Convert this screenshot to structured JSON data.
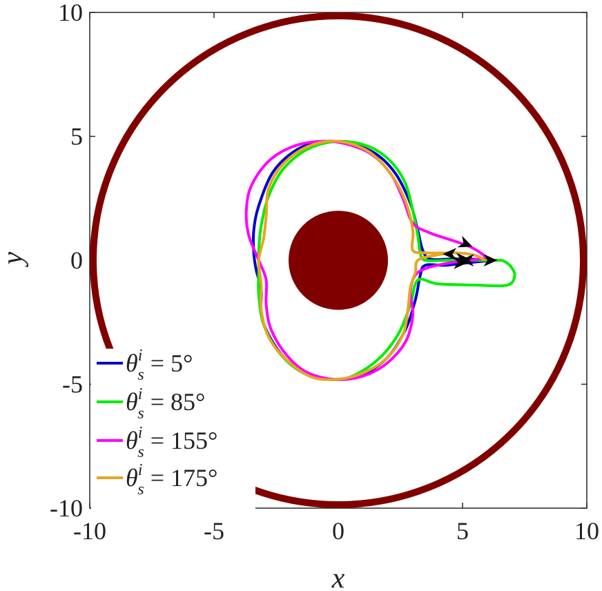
{
  "chart_data": {
    "type": "line",
    "title": "",
    "xlabel": "x",
    "ylabel": "y",
    "xlim": [
      -10,
      10
    ],
    "ylim": [
      -10,
      10
    ],
    "xticks": [
      -10,
      -5,
      0,
      5,
      10
    ],
    "yticks": [
      -10,
      -5,
      0,
      5,
      10
    ],
    "xtick_labels": [
      "-10",
      "-5",
      "0",
      "5",
      "10"
    ],
    "ytick_labels": [
      "-10",
      "-5",
      "0",
      "5",
      "10"
    ],
    "grid": false,
    "legend_position": "bottom-left",
    "outer_circle": {
      "center": [
        0,
        0
      ],
      "radius": 10,
      "color": "#800000"
    },
    "inner_disk": {
      "center": [
        0,
        0
      ],
      "radius": 2,
      "color": "#800000"
    },
    "series": [
      {
        "name_symbol": "θ",
        "name_superscript": "i",
        "name_subscript": "s",
        "name_value": " = 5°",
        "color": "#0000cc",
        "points": [
          [
            6.2,
            0.0
          ],
          [
            5.2,
            -0.1
          ],
          [
            4.3,
            -0.2
          ],
          [
            3.5,
            -0.2
          ],
          [
            3.3,
            -0.6
          ],
          [
            3.1,
            -1.6
          ],
          [
            2.7,
            -2.8
          ],
          [
            2.0,
            -3.9
          ],
          [
            1.0,
            -4.6
          ],
          [
            0.0,
            -4.8
          ],
          [
            -1.0,
            -4.7
          ],
          [
            -2.0,
            -4.1
          ],
          [
            -2.7,
            -3.2
          ],
          [
            -3.1,
            -2.2
          ],
          [
            -3.1,
            -1.2
          ],
          [
            -3.3,
            -0.4
          ],
          [
            -3.4,
            0.3
          ],
          [
            -3.4,
            1.2
          ],
          [
            -3.2,
            2.2
          ],
          [
            -2.6,
            3.6
          ],
          [
            -1.6,
            4.5
          ],
          [
            -0.5,
            4.8
          ],
          [
            0.5,
            4.7
          ],
          [
            1.5,
            4.3
          ],
          [
            2.3,
            3.5
          ],
          [
            2.9,
            2.3
          ],
          [
            3.2,
            1.2
          ],
          [
            3.4,
            0.4
          ],
          [
            3.7,
            0.05
          ],
          [
            4.5,
            0.05
          ],
          [
            5.3,
            0.05
          ],
          [
            6.2,
            0.0
          ]
        ]
      },
      {
        "name_symbol": "θ",
        "name_superscript": "i",
        "name_subscript": "s",
        "name_value": " = 85°",
        "color": "#00ee00",
        "points": [
          [
            6.6,
            0.0
          ],
          [
            6.9,
            -0.2
          ],
          [
            7.1,
            -0.6
          ],
          [
            6.8,
            -1.0
          ],
          [
            5.5,
            -1.0
          ],
          [
            4.0,
            -0.95
          ],
          [
            3.2,
            -0.8
          ],
          [
            2.9,
            -1.8
          ],
          [
            2.4,
            -3.0
          ],
          [
            1.6,
            -4.0
          ],
          [
            0.5,
            -4.7
          ],
          [
            -0.5,
            -4.8
          ],
          [
            -1.5,
            -4.5
          ],
          [
            -2.4,
            -3.7
          ],
          [
            -3.0,
            -2.6
          ],
          [
            -3.2,
            -1.4
          ],
          [
            -3.2,
            -0.4
          ],
          [
            -3.2,
            0.4
          ],
          [
            -3.1,
            1.4
          ],
          [
            -2.8,
            2.6
          ],
          [
            -2.2,
            3.7
          ],
          [
            -1.2,
            4.5
          ],
          [
            0.0,
            4.8
          ],
          [
            1.2,
            4.6
          ],
          [
            2.1,
            4.0
          ],
          [
            2.7,
            3.1
          ],
          [
            3.0,
            2.0
          ],
          [
            3.2,
            1.0
          ],
          [
            3.3,
            0.3
          ],
          [
            3.5,
            0.0
          ],
          [
            4.5,
            0.0
          ],
          [
            5.5,
            0.0
          ],
          [
            6.6,
            0.0
          ]
        ]
      },
      {
        "name_symbol": "θ",
        "name_superscript": "i",
        "name_subscript": "s",
        "name_value": " = 155°",
        "color": "#ff00ff",
        "points": [
          [
            6.0,
            0.1
          ],
          [
            5.4,
            0.5
          ],
          [
            4.6,
            0.8
          ],
          [
            3.7,
            1.1
          ],
          [
            3.0,
            1.5
          ],
          [
            2.6,
            2.5
          ],
          [
            2.1,
            3.5
          ],
          [
            1.3,
            4.3
          ],
          [
            0.3,
            4.7
          ],
          [
            -0.7,
            4.8
          ],
          [
            -1.8,
            4.6
          ],
          [
            -2.8,
            4.0
          ],
          [
            -3.5,
            3.0
          ],
          [
            -3.7,
            2.0
          ],
          [
            -3.6,
            1.0
          ],
          [
            -3.2,
            0.0
          ],
          [
            -2.9,
            -0.8
          ],
          [
            -2.9,
            -1.8
          ],
          [
            -2.7,
            -2.8
          ],
          [
            -2.1,
            -3.8
          ],
          [
            -1.3,
            -4.5
          ],
          [
            -0.2,
            -4.8
          ],
          [
            0.9,
            -4.7
          ],
          [
            1.9,
            -4.2
          ],
          [
            2.7,
            -3.3
          ],
          [
            3.0,
            -2.2
          ],
          [
            2.9,
            -1.3
          ],
          [
            3.1,
            -0.6
          ],
          [
            3.6,
            -0.3
          ],
          [
            4.5,
            -0.1
          ],
          [
            5.3,
            0.0
          ],
          [
            6.0,
            0.1
          ]
        ]
      },
      {
        "name_symbol": "θ",
        "name_superscript": "i",
        "name_subscript": "s",
        "name_value": " = 175°",
        "color": "#e6a623",
        "points": [
          [
            4.5,
            0.3
          ],
          [
            3.6,
            0.3
          ],
          [
            3.0,
            0.4
          ],
          [
            3.0,
            1.2
          ],
          [
            2.7,
            2.4
          ],
          [
            2.1,
            3.5
          ],
          [
            1.2,
            4.4
          ],
          [
            0.0,
            4.8
          ],
          [
            -1.2,
            4.6
          ],
          [
            -2.2,
            3.9
          ],
          [
            -2.8,
            2.9
          ],
          [
            -2.9,
            1.8
          ],
          [
            -3.0,
            0.9
          ],
          [
            -3.2,
            0.0
          ],
          [
            -3.1,
            -1.0
          ],
          [
            -3.1,
            -2.0
          ],
          [
            -2.8,
            -3.1
          ],
          [
            -2.1,
            -4.0
          ],
          [
            -1.1,
            -4.7
          ],
          [
            0.0,
            -4.8
          ],
          [
            1.1,
            -4.5
          ],
          [
            2.0,
            -3.9
          ],
          [
            2.6,
            -3.0
          ],
          [
            2.8,
            -2.0
          ],
          [
            2.9,
            -1.1
          ],
          [
            3.1,
            -0.5
          ],
          [
            3.2,
            0.0
          ],
          [
            3.9,
            0.2
          ],
          [
            4.7,
            0.3
          ],
          [
            5.5,
            0.2
          ],
          [
            5.9,
            0.0
          ]
        ]
      }
    ],
    "arrows": [
      {
        "at": [
          6.4,
          0.0
        ],
        "dir": [
          1,
          0
        ]
      },
      {
        "at": [
          5.4,
          0.55
        ],
        "dir": [
          1,
          -0.4
        ]
      },
      {
        "at": [
          4.2,
          0.25
        ],
        "dir": [
          -1,
          0
        ]
      },
      {
        "at": [
          5.2,
          -0.1
        ],
        "dir": [
          1,
          0
        ]
      },
      {
        "at": [
          5.3,
          0.05
        ],
        "dir": [
          1,
          0
        ]
      },
      {
        "at": [
          4.9,
          0.0
        ],
        "dir": [
          -1,
          0
        ]
      }
    ]
  }
}
